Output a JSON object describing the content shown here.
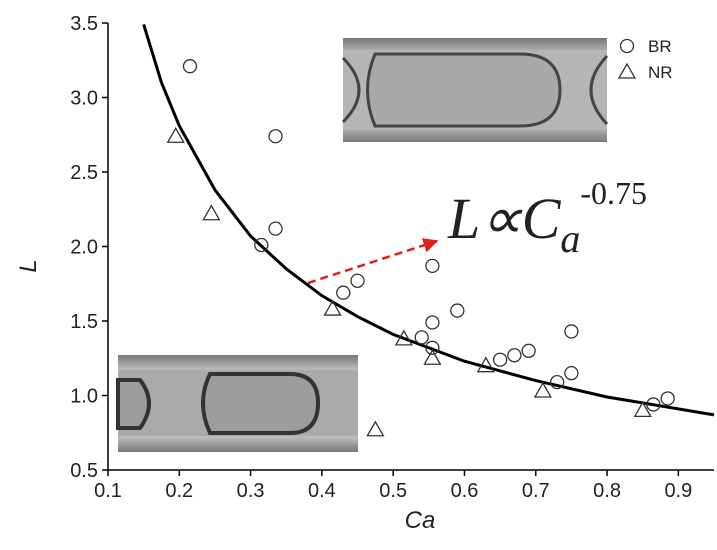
{
  "chart_data": {
    "type": "scatter",
    "x_label": "Ca",
    "y_label": "L",
    "xlim": [
      0.1,
      0.95
    ],
    "ylim": [
      0.5,
      3.5
    ],
    "xticks": [
      0.1,
      0.2,
      0.3,
      0.4,
      0.5,
      0.6,
      0.7,
      0.8,
      0.9
    ],
    "yticks": [
      0.5,
      {
        "value": 1,
        "label": "1.0"
      },
      1.5,
      {
        "value": 2,
        "label": "2.0"
      },
      2.5,
      {
        "value": 3,
        "label": "3.0"
      },
      3.5
    ],
    "legend": "top-right",
    "series": [
      {
        "name": "BR",
        "marker": "circle",
        "color": "#333333",
        "x": [
          0.215,
          0.335,
          0.315,
          0.335,
          0.43,
          0.45,
          0.555,
          0.59,
          0.555,
          0.54,
          0.555,
          0.65,
          0.67,
          0.69,
          0.75,
          0.73,
          0.75,
          0.865,
          0.885
        ],
        "values": [
          3.21,
          2.74,
          2.01,
          2.12,
          1.69,
          1.77,
          1.87,
          1.57,
          1.49,
          1.39,
          1.32,
          1.24,
          1.27,
          1.3,
          1.43,
          1.09,
          1.15,
          0.94,
          0.98
        ]
      },
      {
        "name": "NR",
        "marker": "triangle",
        "color": "#333333",
        "x": [
          0.195,
          0.245,
          0.415,
          0.515,
          0.555,
          0.63,
          0.71,
          0.85,
          0.475
        ],
        "values": [
          2.74,
          2.22,
          1.58,
          1.38,
          1.25,
          1.2,
          1.03,
          0.9,
          0.77
        ]
      }
    ],
    "fit": {
      "color": "#000000",
      "x": [
        0.15,
        0.175,
        0.2,
        0.25,
        0.3,
        0.35,
        0.4,
        0.45,
        0.5,
        0.6,
        0.7,
        0.8,
        0.95
      ],
      "values": [
        3.49,
        3.1,
        2.81,
        2.38,
        2.07,
        1.85,
        1.67,
        1.53,
        1.41,
        1.23,
        1.1,
        0.99,
        0.87
      ]
    },
    "annotation": {
      "text": "L∝C",
      "subscript": "a",
      "exponent": -0.75
    }
  }
}
